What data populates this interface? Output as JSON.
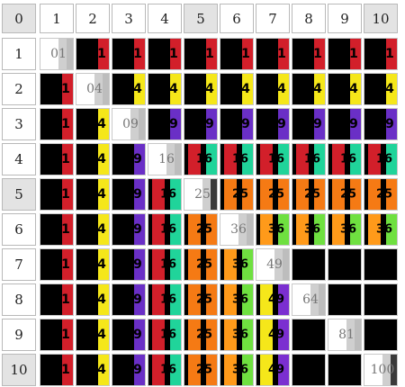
{
  "corner_label": "0",
  "column_headers": [
    "1",
    "2",
    "3",
    "4",
    "5",
    "6",
    "7",
    "8",
    "9",
    "10"
  ],
  "row_headers": [
    "1",
    "2",
    "3",
    "4",
    "5",
    "6",
    "7",
    "8",
    "9",
    "10"
  ],
  "highlighted_headers": [
    5,
    10
  ],
  "colors": {
    "digit_black": "#000000",
    "one": "#d21f2a",
    "four": "#f5e71a",
    "nine": "#6a2fc6",
    "sixteen": "#20d49a",
    "twentyfive": "#f57a14",
    "thirtysix": "#6fe040",
    "fortynine": "#7b2fd0",
    "sixtyfour": "#cfcfcf",
    "eightyone": "#d9d9d9",
    "hundred": "#d9d9d9",
    "diag_text": "#777777"
  },
  "squares": [
    "1",
    "4",
    "9",
    "16",
    "25",
    "36",
    "49",
    "64",
    "81",
    "100"
  ],
  "grid": [
    [
      "01",
      "1",
      "1",
      "1",
      "1",
      "1",
      "1",
      "1",
      "1",
      "1"
    ],
    [
      "1",
      "04",
      "4",
      "4",
      "4",
      "4",
      "4",
      "4",
      "4",
      "4"
    ],
    [
      "1",
      "4",
      "09",
      "9",
      "9",
      "9",
      "9",
      "9",
      "9",
      "9"
    ],
    [
      "1",
      "4",
      "9",
      "16",
      "16",
      "16",
      "16",
      "16",
      "16",
      "16"
    ],
    [
      "1",
      "4",
      "9",
      "16",
      "25",
      "25",
      "25",
      "25",
      "25",
      "25"
    ],
    [
      "1",
      "4",
      "9",
      "16",
      "25",
      "36",
      "36",
      "36",
      "36",
      "36"
    ],
    [
      "1",
      "4",
      "9",
      "16",
      "25",
      "36",
      "49",
      "",
      "",
      ""
    ],
    [
      "1",
      "4",
      "9",
      "16",
      "25",
      "36",
      "49",
      "64",
      "",
      ""
    ],
    [
      "1",
      "4",
      "9",
      "16",
      "25",
      "36",
      "49",
      "",
      "81",
      ""
    ],
    [
      "1",
      "4",
      "9",
      "16",
      "25",
      "36",
      "49",
      "",
      "",
      "100"
    ]
  ]
}
